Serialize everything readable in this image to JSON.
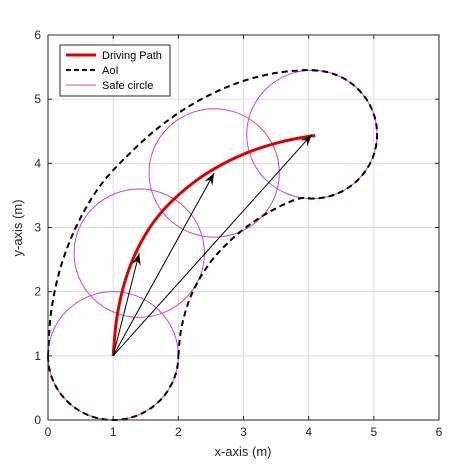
{
  "chart_data": {
    "type": "line",
    "title": "",
    "xlabel": "x-axis (m)",
    "ylabel": "y-axis (m)",
    "xlim": [
      0,
      6
    ],
    "ylim": [
      0,
      6
    ],
    "xticks": [
      "0",
      "1",
      "2",
      "3",
      "4",
      "5",
      "6"
    ],
    "yticks": [
      "0",
      "1",
      "2",
      "3",
      "4",
      "5",
      "6"
    ],
    "grid": true,
    "legend_position": "top-left",
    "legend": [
      {
        "label": "Driving Path",
        "style": "solid",
        "color": "#dd0000"
      },
      {
        "label": "AoI",
        "style": "dashed",
        "color": "#000000"
      },
      {
        "label": "Safe circle",
        "style": "thin",
        "color": "#d040d0"
      }
    ],
    "driving_path": {
      "name": "Driving Path",
      "x": [
        1.0,
        1.05,
        1.15,
        1.3,
        1.5,
        1.75,
        2.05,
        2.4,
        2.8,
        3.2,
        3.6,
        4.0,
        4.1
      ],
      "y": [
        1.0,
        1.55,
        2.05,
        2.5,
        2.9,
        3.25,
        3.55,
        3.82,
        4.05,
        4.22,
        4.34,
        4.42,
        4.43
      ]
    },
    "safe_circles": {
      "name": "Safe circle",
      "radius": 1.0,
      "centers": [
        [
          1.0,
          1.0
        ],
        [
          1.4,
          2.6
        ],
        [
          2.55,
          3.85
        ],
        [
          4.05,
          4.45
        ]
      ]
    },
    "aoi": {
      "name": "AoI",
      "outer": {
        "x": [
          0.0,
          0.05,
          0.2,
          0.45,
          0.8,
          1.25,
          1.75,
          2.3,
          2.9,
          3.45,
          3.9,
          4.1
        ],
        "y": [
          1.0,
          1.7,
          2.4,
          3.05,
          3.65,
          4.15,
          4.6,
          4.97,
          5.25,
          5.4,
          5.45,
          5.45
        ]
      },
      "inner": {
        "x": [
          2.0,
          2.05,
          2.2,
          2.45,
          2.75,
          3.1,
          3.5,
          3.85,
          4.05
        ],
        "y": [
          1.0,
          1.45,
          1.95,
          2.4,
          2.75,
          3.05,
          3.3,
          3.45,
          3.45
        ]
      }
    },
    "vectors": {
      "origin": [
        1.0,
        1.0
      ],
      "endpoints": [
        [
          1.4,
          2.6
        ],
        [
          2.55,
          3.85
        ],
        [
          4.05,
          4.45
        ]
      ]
    }
  }
}
